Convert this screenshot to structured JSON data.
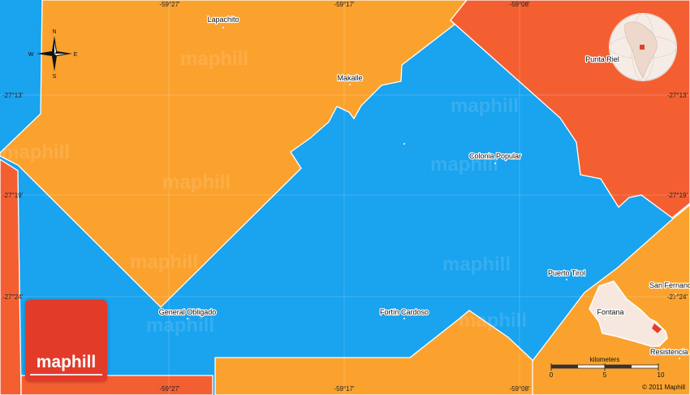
{
  "map": {
    "longitude_labels": [
      "-59°27'",
      "-59°17'",
      "-59°08'"
    ],
    "latitude_labels": [
      "-27°13'",
      "-27°19'",
      "-27°24'"
    ],
    "places": [
      {
        "name": "Lapachito"
      },
      {
        "name": "Makalle"
      },
      {
        "name": "Punta Riel"
      },
      {
        "name": "Colonia Popular"
      },
      {
        "name": "Puerto Tirol"
      },
      {
        "name": "San Fernando"
      },
      {
        "name": "General Obligado"
      },
      {
        "name": "Fortín Cardoso"
      },
      {
        "name": "Fontana"
      },
      {
        "name": "Resistencia"
      }
    ],
    "compass": {
      "n": "N",
      "s": "S",
      "e": "E",
      "w": "W"
    },
    "watermark": "maphill",
    "colors": {
      "blue": "#1aa3ee",
      "orange": "#fba22e",
      "red": "#f45f32",
      "white_border": "#ffffff"
    }
  },
  "scale": {
    "title": "kilometers",
    "ticks": [
      "0",
      "5",
      "10"
    ]
  },
  "copyright": "© 2011 Maphill",
  "logo": {
    "text": "maphill"
  },
  "icons": [
    "compass-rose-icon",
    "globe-locator-icon",
    "region-locator-icon",
    "logo-icon"
  ]
}
